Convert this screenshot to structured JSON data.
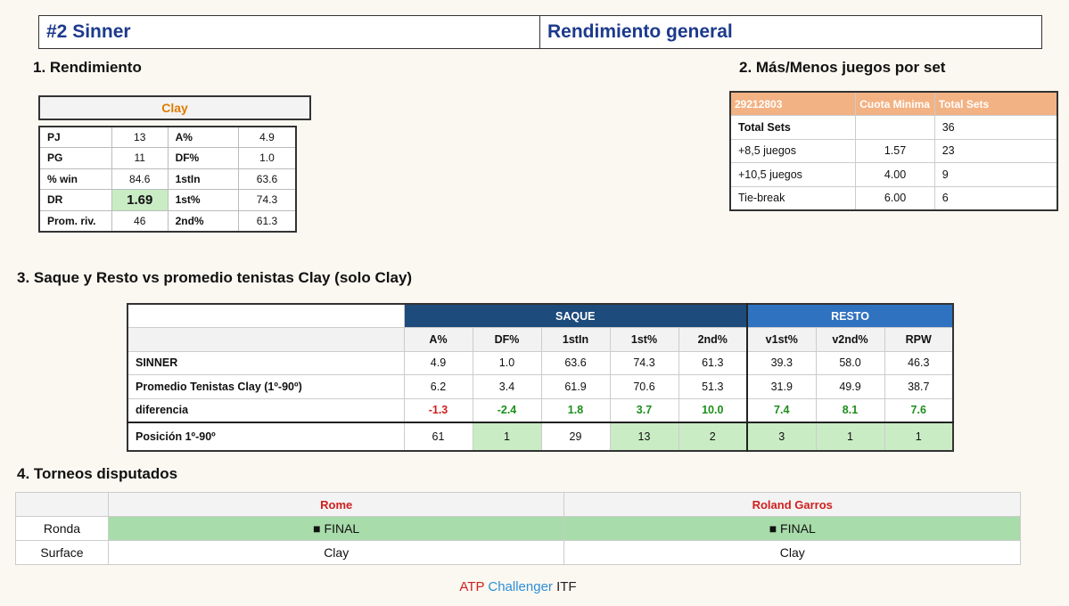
{
  "header": {
    "player": "#2 Sinner",
    "subtitle": "Rendimiento general"
  },
  "sections": {
    "s1": "1. Rendimiento",
    "s2": "2. Más/Menos juegos por set",
    "s3": "3. Saque y Resto vs promedio tenistas Clay (solo Clay)",
    "s4": "4. Torneos disputados"
  },
  "rendimiento": {
    "surface": "Clay",
    "rows": [
      [
        "PJ",
        "13",
        "A%",
        "4.9"
      ],
      [
        "PG",
        "11",
        "DF%",
        "1.0"
      ],
      [
        "% win",
        "84.6",
        "1stIn",
        "63.6"
      ],
      [
        "DR",
        "1.69",
        "1st%",
        "74.3"
      ],
      [
        "Prom. riv.",
        "46",
        "2nd%",
        "61.3"
      ]
    ]
  },
  "masmenos": {
    "header": [
      "29212803",
      "Cuota Minima",
      "Total Sets"
    ],
    "rows": [
      [
        "Total Sets",
        "",
        "36"
      ],
      [
        "+8,5 juegos",
        "1.57",
        "23"
      ],
      [
        "+10,5 juegos",
        "4.00",
        "9"
      ],
      [
        "Tie-break",
        "6.00",
        "6"
      ]
    ]
  },
  "saque_resto": {
    "group_saque": "SAQUE",
    "group_resto": "RESTO",
    "columns": [
      "A%",
      "DF%",
      "1stIn",
      "1st%",
      "2nd%",
      "v1st%",
      "v2nd%",
      "RPW"
    ],
    "rows": {
      "player": {
        "label": "SINNER",
        "values": [
          "4.9",
          "1.0",
          "63.6",
          "74.3",
          "61.3",
          "39.3",
          "58.0",
          "46.3"
        ]
      },
      "avg": {
        "label": "Promedio Tenistas Clay (1º-90º)",
        "values": [
          "6.2",
          "3.4",
          "61.9",
          "70.6",
          "51.3",
          "31.9",
          "49.9",
          "38.7"
        ]
      },
      "diff": {
        "label": "diferencia",
        "values": [
          "-1.3",
          "-2.4",
          "1.8",
          "3.7",
          "10.0",
          "7.4",
          "8.1",
          "7.6"
        ]
      },
      "pos": {
        "label": "Posición 1º-90º",
        "values": [
          "61",
          "1",
          "29",
          "13",
          "2",
          "3",
          "1",
          "1"
        ]
      }
    }
  },
  "torneos": {
    "tournaments": [
      "Rome",
      "Roland Garros"
    ],
    "ronda_label": "Ronda",
    "ronda": [
      "■ FINAL",
      "■ FINAL"
    ],
    "surface_label": "Surface",
    "surface": [
      "Clay",
      "Clay"
    ]
  },
  "legend": {
    "atp": "ATP",
    "challenger": "Challenger",
    "itf": "ITF"
  }
}
